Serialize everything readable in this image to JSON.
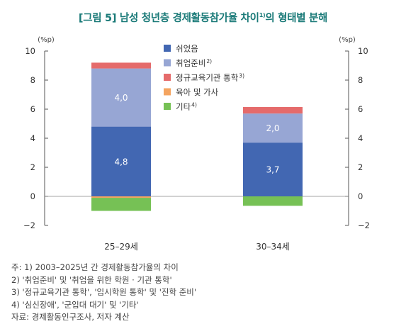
{
  "title_main": "[그림 5] 남성 청년층 경제활동참가율 차이",
  "title_sup": "1)",
  "title_tail": "의 형태별 분해",
  "chart_data": {
    "type": "bar",
    "stacked": true,
    "categories": [
      "25–29세",
      "30–34세"
    ],
    "series": [
      {
        "name": "쉬었음",
        "note": "",
        "color": "#4267b2",
        "values": [
          4.8,
          3.7
        ],
        "labels": [
          "4,8",
          "3,7"
        ]
      },
      {
        "name": "취업준비",
        "note": "2)",
        "color": "#97a6d4",
        "values": [
          4.0,
          2.0
        ],
        "labels": [
          "4,0",
          "2,0"
        ]
      },
      {
        "name": "정규교육기관 통학",
        "note": "3)",
        "color": "#e56b6b",
        "values": [
          0.4,
          0.45
        ],
        "labels": [
          "",
          ""
        ]
      },
      {
        "name": "육아 및 가사",
        "note": "",
        "color": "#f4a460",
        "values": [
          -0.1,
          0.0
        ],
        "labels": [
          "",
          ""
        ]
      },
      {
        "name": "기타",
        "note": "4)",
        "color": "#76c155",
        "values": [
          -0.9,
          -0.65
        ],
        "labels": [
          "",
          ""
        ]
      }
    ],
    "ylim": [
      -2,
      10
    ],
    "yticks": [
      -2,
      0,
      2,
      4,
      6,
      8,
      10
    ],
    "y_unit_left": "(%p)",
    "y_unit_right": "(%p)",
    "legend_position": "top-center"
  },
  "notes": [
    "주: 1) 2003–2025년 간 경제활동참가율의 차이",
    "      2) '취업준비' 및 '취업을 위한 학원 · 기관 통학'",
    "      3) '정규교육기관 통학', '입시학원 통학' 및 '진학 준비'",
    "      4) '심신장애', '군입대 대기' 및 '기타'",
    "자료: 경제활동인구조사, 저자 계산"
  ]
}
